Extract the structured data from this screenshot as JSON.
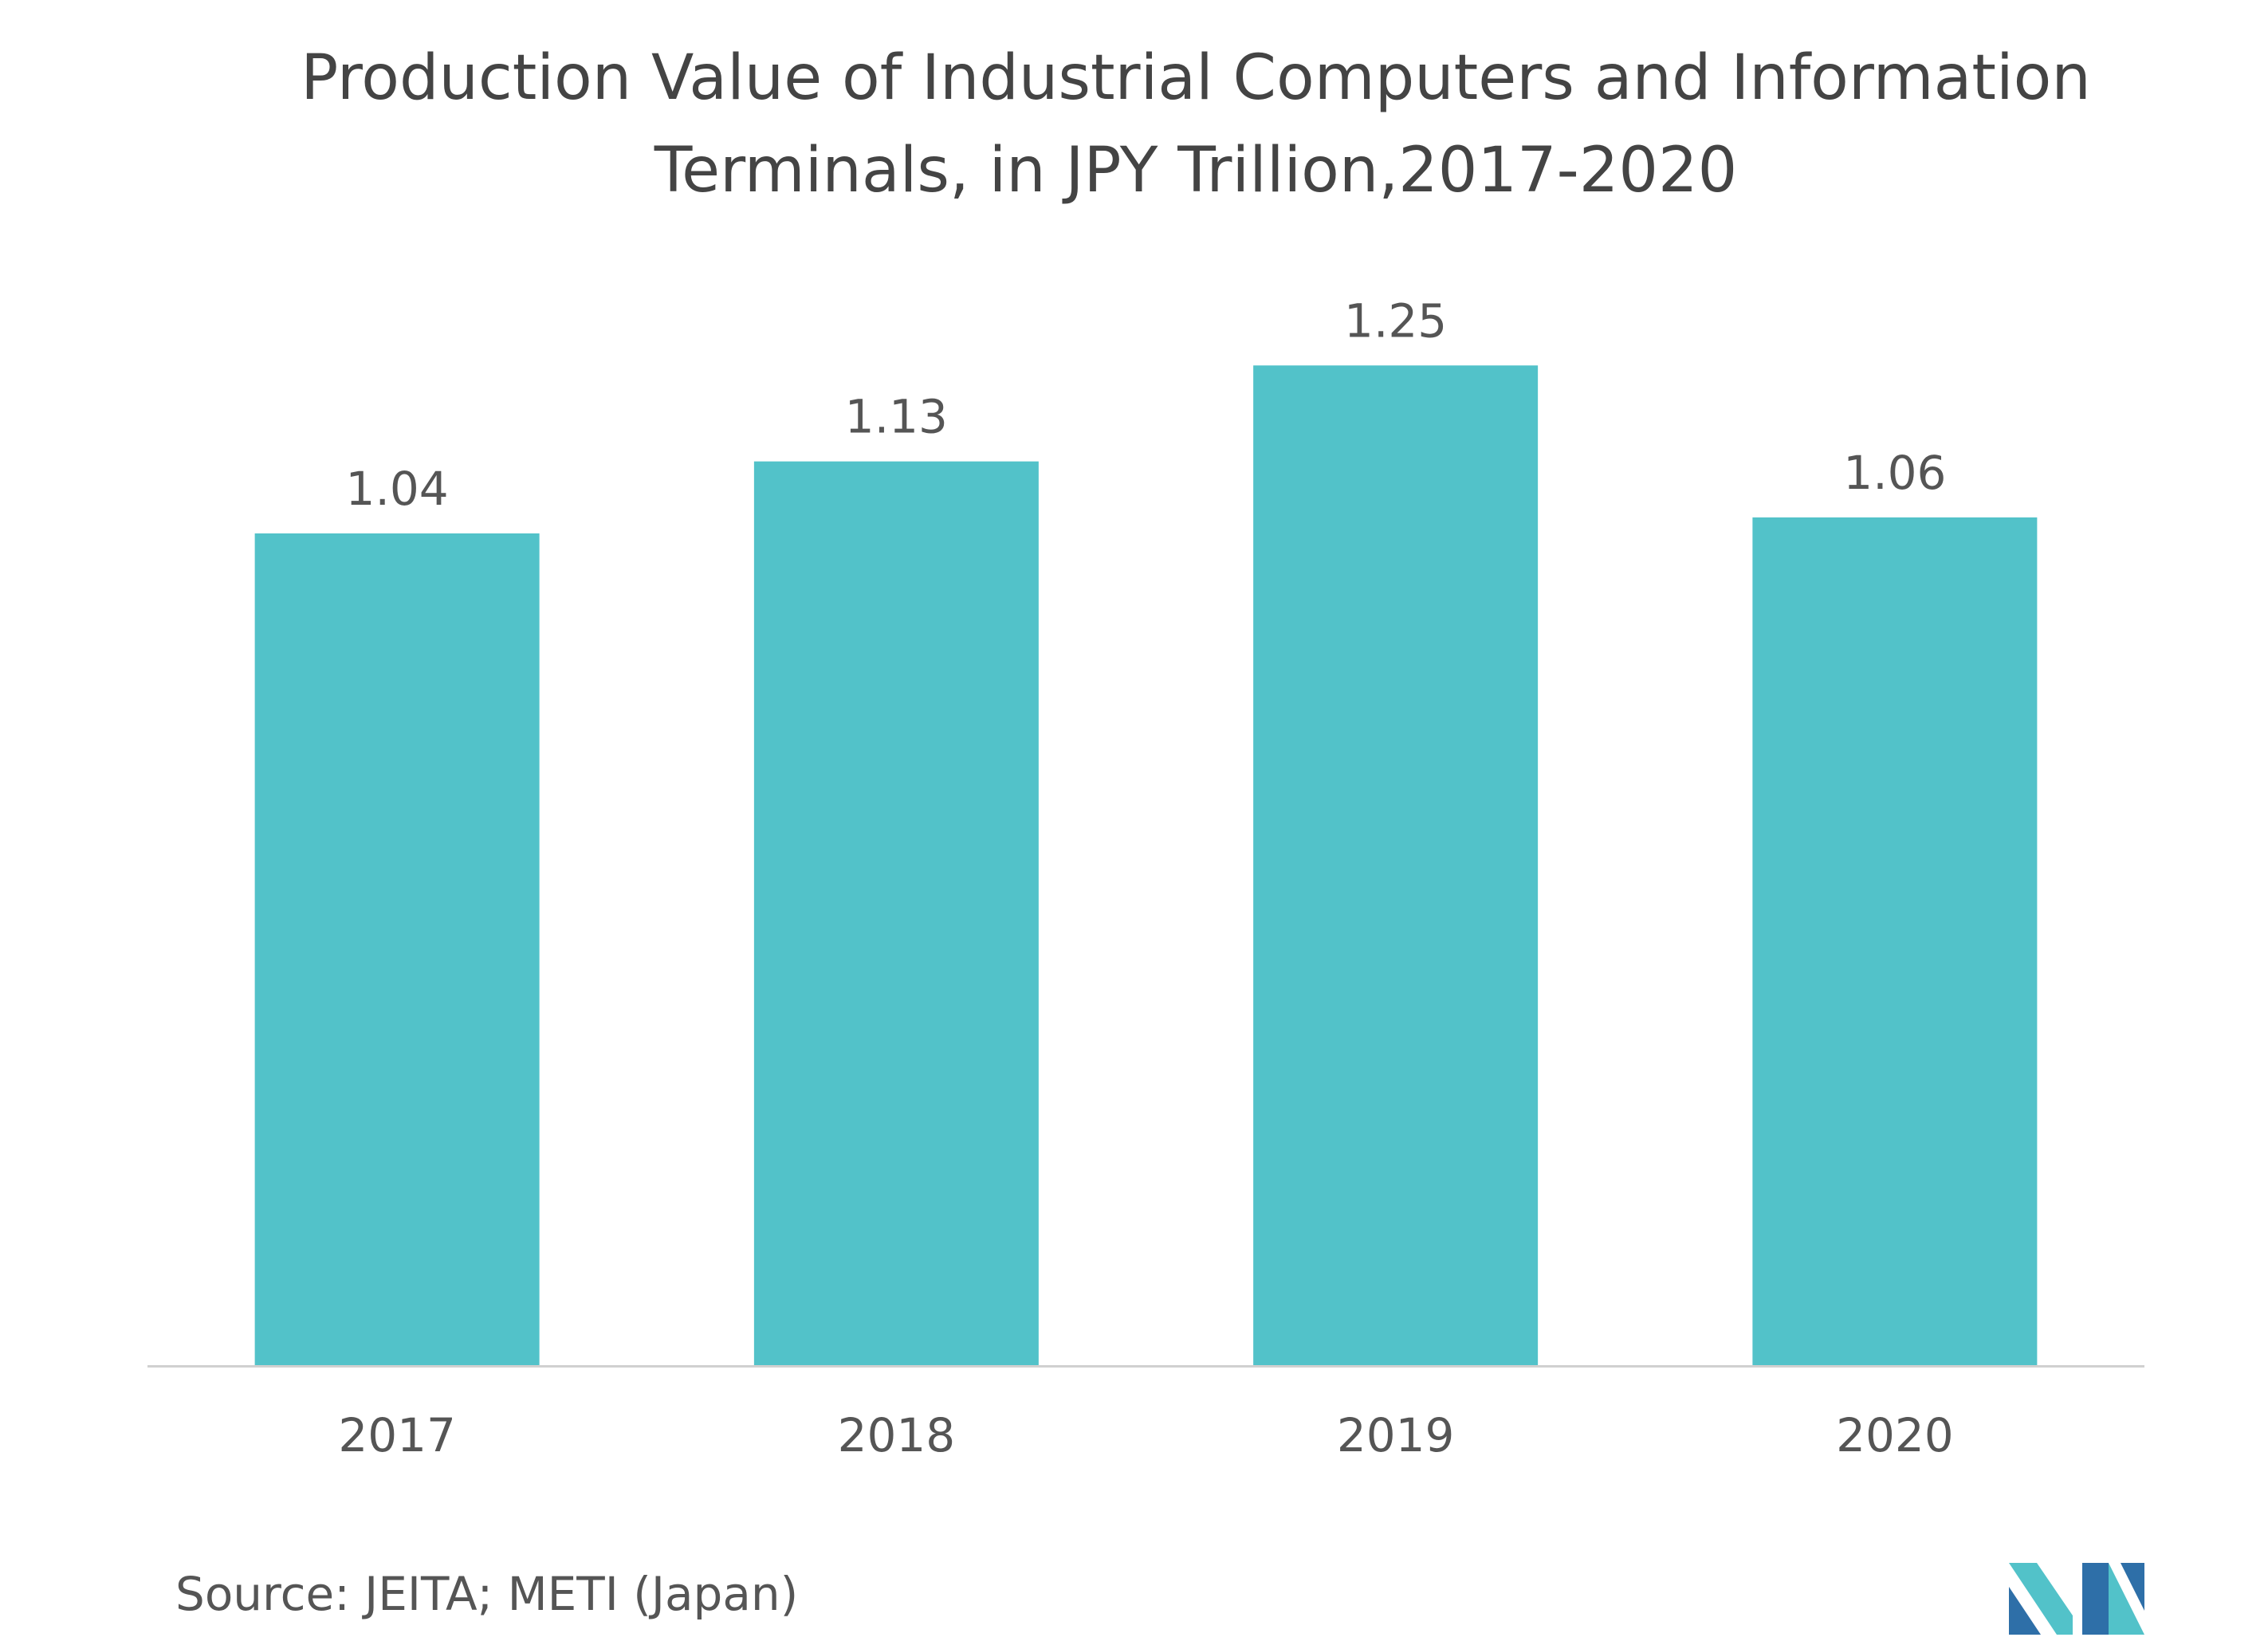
{
  "chart_data": {
    "type": "bar",
    "title_line1": "Production Value of Industrial Computers and Information",
    "title_line2": "Terminals, in JPY Trillion,2017-2020",
    "categories": [
      "2017",
      "2018",
      "2019",
      "2020"
    ],
    "values": [
      1.04,
      1.13,
      1.25,
      1.06
    ],
    "data_labels": [
      "1.04",
      "1.13",
      "1.25",
      "1.06"
    ],
    "xlabel": "",
    "ylabel": "",
    "ylim": [
      0,
      1.35
    ],
    "grid": false,
    "legend": "none",
    "bar_color": "#52C2C9",
    "axis_color": "#D0D0D0",
    "label_color": "#555555"
  },
  "source": "Source: JEITA; METI (Japan)",
  "logo": {
    "icon": "mordor-intelligence-logo-icon",
    "colors": [
      "#2E6FA8",
      "#52C2C9"
    ]
  }
}
